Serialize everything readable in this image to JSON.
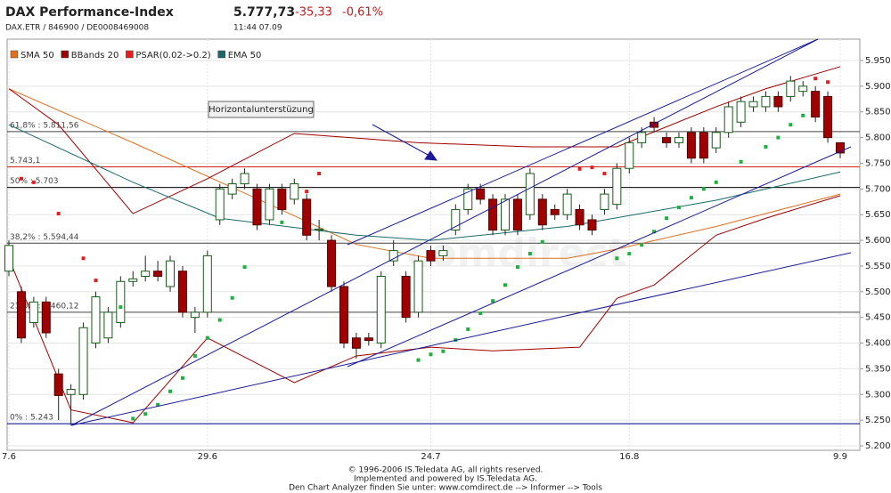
{
  "header": {
    "title": "DAX Performance-Index",
    "symbol": "DAX.ETR / 846900 / DE0008469008",
    "price": "5.777,73",
    "change": "-35,33",
    "change_pct": "-0,61%",
    "time": "11:44  07.09"
  },
  "chart_data": {
    "type": "candlestick",
    "categories": [
      "7.6",
      null,
      null,
      null,
      null,
      null,
      null,
      null,
      null,
      null,
      null,
      null,
      null,
      null,
      null,
      null,
      "29.6",
      null,
      null,
      null,
      null,
      null,
      null,
      null,
      null,
      null,
      null,
      null,
      null,
      null,
      null,
      null,
      null,
      null,
      "24.7",
      null,
      null,
      null,
      null,
      null,
      null,
      null,
      null,
      null,
      null,
      null,
      null,
      null,
      null,
      null,
      "16.8",
      null,
      null,
      null,
      null,
      null,
      null,
      null,
      null,
      null,
      null,
      null,
      null,
      null,
      null,
      null,
      null,
      "9.9"
    ],
    "ohlc": {
      "color_up": "#ffffff",
      "color_down": "#a00000",
      "open": [
        5540,
        5500,
        5440,
        5480,
        5340,
        5300,
        5300,
        5400,
        5410,
        5440,
        5520,
        5530,
        5540,
        5510,
        5540,
        5450,
        5460,
        5640,
        5690,
        5710,
        5700,
        5640,
        5700,
        5680,
        5680,
        5620,
        5600,
        5510,
        5410,
        5410,
        5400,
        5560,
        5530,
        5460,
        5580,
        5570,
        5620,
        5660,
        5700,
        5680,
        5620,
        5680,
        5650,
        5680,
        5660,
        5650,
        5660,
        5640,
        5660,
        5670,
        5740,
        5790,
        5830,
        5800,
        5790,
        5810,
        5810,
        5780,
        5810,
        5830,
        5860,
        5860,
        5880,
        5880,
        5890,
        5890,
        5880,
        5790
      ],
      "high": [
        5600,
        5510,
        5490,
        5490,
        5350,
        5320,
        5440,
        5500,
        5470,
        5530,
        5540,
        5570,
        5560,
        5570,
        5550,
        5470,
        5580,
        5710,
        5720,
        5740,
        5710,
        5710,
        5710,
        5720,
        5690,
        5640,
        5610,
        5520,
        5420,
        5420,
        5540,
        5600,
        5540,
        5570,
        5590,
        5590,
        5670,
        5710,
        5710,
        5690,
        5690,
        5690,
        5740,
        5690,
        5670,
        5700,
        5670,
        5650,
        5700,
        5750,
        5800,
        5820,
        5840,
        5810,
        5810,
        5820,
        5820,
        5820,
        5870,
        5880,
        5880,
        5890,
        5890,
        5920,
        5910,
        5900,
        5890,
        5790
      ],
      "low": [
        5530,
        5400,
        5430,
        5410,
        5250,
        5240,
        5290,
        5390,
        5400,
        5430,
        5510,
        5520,
        5520,
        5500,
        5450,
        5420,
        5450,
        5630,
        5680,
        5700,
        5620,
        5630,
        5650,
        5670,
        5600,
        5600,
        5500,
        5390,
        5370,
        5395,
        5390,
        5550,
        5440,
        5450,
        5550,
        5560,
        5610,
        5650,
        5670,
        5610,
        5610,
        5610,
        5640,
        5620,
        5640,
        5640,
        5620,
        5610,
        5650,
        5660,
        5730,
        5780,
        5810,
        5780,
        5780,
        5750,
        5750,
        5770,
        5800,
        5820,
        5850,
        5850,
        5850,
        5870,
        5880,
        5830,
        5790,
        5760
      ],
      "close": [
        5590,
        5410,
        5480,
        5420,
        5298,
        5310,
        5430,
        5490,
        5460,
        5520,
        5525,
        5540,
        5530,
        5560,
        5460,
        5460,
        5570,
        5700,
        5710,
        5730,
        5630,
        5700,
        5660,
        5710,
        5610,
        5622,
        5510,
        5400,
        5390,
        5405,
        5530,
        5580,
        5450,
        5560,
        5560,
        5580,
        5660,
        5700,
        5680,
        5620,
        5680,
        5620,
        5730,
        5630,
        5650,
        5690,
        5630,
        5620,
        5690,
        5740,
        5790,
        5810,
        5820,
        5790,
        5800,
        5760,
        5760,
        5810,
        5860,
        5870,
        5870,
        5880,
        5860,
        5910,
        5900,
        5840,
        5800,
        5770
      ]
    },
    "series": [
      {
        "name": "SMA 50",
        "color": "#e07020",
        "x": [
          0,
          10,
          21,
          28,
          34,
          45,
          49,
          57,
          67
        ],
        "values": [
          5895,
          5790,
          5670,
          5592,
          5565,
          5565,
          5583,
          5627,
          5690
        ]
      },
      {
        "name": "BBands 20",
        "color": "#a00000",
        "upper": {
          "x": [
            0,
            4,
            10,
            16,
            23,
            33,
            42,
            49,
            57,
            61,
            67
          ],
          "values": [
            5895,
            5825,
            5652,
            5720,
            5808,
            5790,
            5782,
            5782,
            5860,
            5895,
            5938
          ]
        },
        "lower": {
          "x": [
            0,
            5,
            10,
            16,
            23,
            28,
            34,
            39,
            46,
            49,
            52,
            57,
            61,
            67
          ],
          "values": [
            5565,
            5270,
            5245,
            5410,
            5323,
            5375,
            5392,
            5385,
            5392,
            5487,
            5513,
            5610,
            5643,
            5687
          ]
        }
      },
      {
        "name": "PSAR(0.02->0.2)",
        "color": "#e02020",
        "color_below": "#20b040",
        "x": [
          1,
          2,
          4,
          6,
          7,
          9,
          10,
          11,
          12,
          13,
          14,
          15,
          16,
          17,
          18,
          19,
          22,
          24,
          25,
          33,
          34,
          35,
          36,
          37,
          38,
          39,
          40,
          41,
          42,
          43,
          46,
          47,
          48,
          49,
          50,
          51,
          52,
          53,
          54,
          55,
          56,
          57,
          59,
          61,
          62,
          63,
          64,
          65,
          66
        ],
        "values": [
          5720,
          5713,
          5652,
          5565,
          5522,
          5470,
          5253,
          5262,
          5280,
          5306,
          5332,
          5375,
          5410,
          5445,
          5488,
          5548,
          5635,
          5695,
          5730,
          5367,
          5378,
          5384,
          5406,
          5427,
          5458,
          5482,
          5513,
          5548,
          5574,
          5597,
          5739,
          5742,
          5730,
          5565,
          5574,
          5591,
          5617,
          5643,
          5664,
          5683,
          5700,
          5713,
          5753,
          5782,
          5800,
          5825,
          5843,
          5915,
          5908
        ]
      },
      {
        "name": "EMA 50",
        "color": "#1a6a6a",
        "x": [
          0,
          10,
          17,
          28,
          34,
          45,
          57,
          67
        ],
        "values": [
          5825,
          5713,
          5643,
          5610,
          5600,
          5627,
          5678,
          5733
        ]
      }
    ],
    "levels": [
      {
        "value": 5811.56,
        "label": "61,8% : 5.811,56",
        "color": "#444444"
      },
      {
        "value": 5743.1,
        "label": "5.743,1",
        "color": "#d02020"
      },
      {
        "value": 5703,
        "label": "50% : 5.703",
        "color": "#000000"
      },
      {
        "value": 5594.44,
        "label": "38,2% : 5.594,44",
        "color": "#444444"
      },
      {
        "value": 5460.12,
        "label": "23,6% : 5.460,12",
        "color": "#444444"
      },
      {
        "value": 5243,
        "label": "0% : 5.243",
        "color": "#000080"
      }
    ],
    "annotation": "Horizontalunterstüzung",
    "watermark": "comdirect",
    "ylim": [
      5200,
      5950
    ],
    "yticks": [
      {
        "value": 5200,
        "label": "5.200"
      },
      {
        "value": 5250,
        "label": "5.250"
      },
      {
        "value": 5300,
        "label": "5.300"
      },
      {
        "value": 5350,
        "label": "5.350"
      },
      {
        "value": 5400,
        "label": "5.400"
      },
      {
        "value": 5450,
        "label": "5.450"
      },
      {
        "value": 5500,
        "label": "5.500"
      },
      {
        "value": 5550,
        "label": "5.550"
      },
      {
        "value": 5600,
        "label": "5.600"
      },
      {
        "value": 5650,
        "label": "5.650"
      },
      {
        "value": 5700,
        "label": "5.700"
      },
      {
        "value": 5750,
        "label": "5.750"
      },
      {
        "value": 5800,
        "label": "5.800"
      },
      {
        "value": 5850,
        "label": "5.850"
      },
      {
        "value": 5900,
        "label": "5.900"
      },
      {
        "value": 5950,
        "label": "5.950"
      }
    ],
    "grid": true
  },
  "footer": [
    "© 1996-2006 IS.Teledata AG, all rights reserved.",
    "Implemented and powered by IS.Teledata AG.",
    "Den Chart Analyzer finden Sie unter: www.comdirect.de --> Informer --> Tools"
  ]
}
